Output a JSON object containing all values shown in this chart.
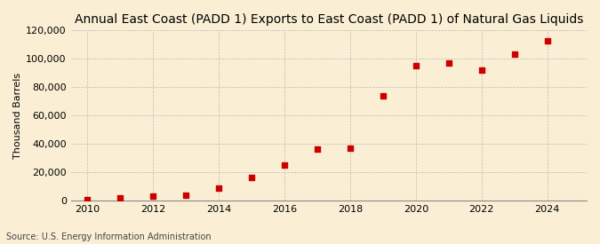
{
  "title": "Annual East Coast (PADD 1) Exports to East Coast (PADD 1) of Natural Gas Liquids",
  "ylabel": "Thousand Barrels",
  "source": "Source: U.S. Energy Information Administration",
  "background_color": "#faefd4",
  "years": [
    2010,
    2011,
    2012,
    2013,
    2014,
    2015,
    2016,
    2017,
    2018,
    2019,
    2020,
    2021,
    2022,
    2023,
    2024
  ],
  "values": [
    500,
    2000,
    3000,
    4000,
    9000,
    16000,
    25000,
    36000,
    37000,
    74000,
    95000,
    97000,
    92000,
    103000,
    113000
  ],
  "marker_color": "#cc0000",
  "marker_size": 4,
  "ylim": [
    0,
    120000
  ],
  "yticks": [
    0,
    20000,
    40000,
    60000,
    80000,
    100000,
    120000
  ],
  "xlim": [
    2009.5,
    2025.2
  ],
  "xticks": [
    2010,
    2012,
    2014,
    2016,
    2018,
    2020,
    2022,
    2024
  ],
  "title_fontsize": 10,
  "axis_fontsize": 8,
  "source_fontsize": 7
}
